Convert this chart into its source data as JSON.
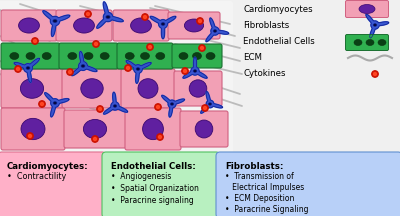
{
  "bg_color": "#f0f0f0",
  "cardiomyocyte_fill": "#f2a0b5",
  "cardiomyocyte_edge": "#d06080",
  "cardiomyocyte_nucleus": "#6020a0",
  "endothelial_fill": "#30b050",
  "endothelial_edge": "#1a7030",
  "endothelial_nucleus": "#0a4015",
  "fibroblast_fill": "#3050d0",
  "fibroblast_edge": "#102090",
  "fibroblast_nucleus": "#050840",
  "ecm_color": "#aaaaaa",
  "cytokine_outer": "#cc1100",
  "cytokine_inner": "#ff4422",
  "box1_bg": "#ffb0c8",
  "box1_edge": "#e07090",
  "box1_title": "Cardiomyocytes:",
  "box1_items": [
    "Contractility"
  ],
  "box2_bg": "#b8f0c0",
  "box2_edge": "#50c060",
  "box2_title": "Endothelial Cells:",
  "box2_items": [
    "Angiogenesis",
    "Spatial Organization",
    "Paracrine signaling"
  ],
  "box3_bg": "#b8d0f8",
  "box3_edge": "#6090d0",
  "box3_title": "Fibroblasts:",
  "box3_items": [
    "Transmission of Electrical Impulses",
    "ECM Deposition",
    "Paracrine Signaling"
  ]
}
